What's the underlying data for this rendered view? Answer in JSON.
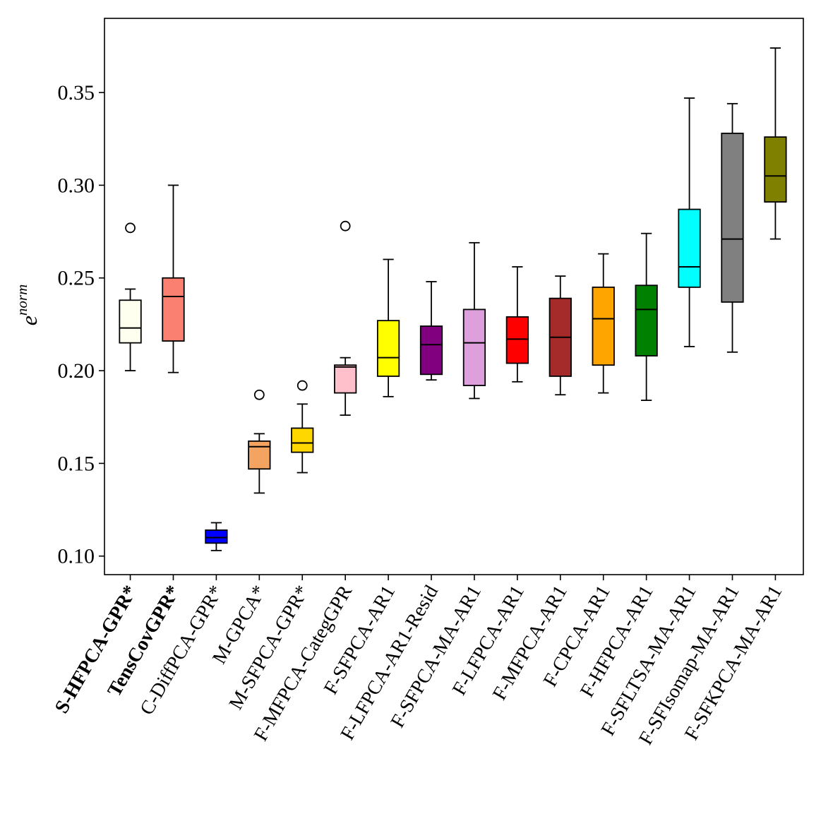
{
  "chart_data": {
    "type": "box",
    "title": "",
    "xlabel": "",
    "ylabel": "e",
    "ylabel_superscript": "norm",
    "ylim": [
      0.09,
      0.39
    ],
    "yticks": [
      0.1,
      0.15,
      0.2,
      0.25,
      0.3,
      0.35
    ],
    "ytick_labels": [
      "0.10",
      "0.15",
      "0.20",
      "0.25",
      "0.30",
      "0.35"
    ],
    "categories": [
      {
        "label": "S-HFPCA-GPR*",
        "bold": true,
        "color": "#fffff0",
        "whislo": 0.2,
        "q1": 0.215,
        "median": 0.223,
        "q3": 0.238,
        "whishi": 0.244,
        "fliers": [
          0.277
        ]
      },
      {
        "label": "TensCovGPR*",
        "bold": true,
        "color": "#fa8072",
        "whislo": 0.199,
        "q1": 0.216,
        "median": 0.24,
        "q3": 0.25,
        "whishi": 0.3,
        "fliers": []
      },
      {
        "label": "C-DiffPCA-GPR*",
        "bold": false,
        "color": "#0000ff",
        "whislo": 0.103,
        "q1": 0.107,
        "median": 0.11,
        "q3": 0.114,
        "whishi": 0.118,
        "fliers": []
      },
      {
        "label": "M-GPCA*",
        "bold": false,
        "color": "#f4a460",
        "whislo": 0.134,
        "q1": 0.147,
        "median": 0.159,
        "q3": 0.162,
        "whishi": 0.166,
        "fliers": [
          0.187
        ]
      },
      {
        "label": "M-SFPCA-GPR*",
        "bold": false,
        "color": "#ffd700",
        "whislo": 0.145,
        "q1": 0.156,
        "median": 0.161,
        "q3": 0.169,
        "whishi": 0.182,
        "fliers": [
          0.192
        ]
      },
      {
        "label": "F-MFPCA-CategGPR",
        "bold": false,
        "color": "#ffc0cb",
        "whislo": 0.176,
        "q1": 0.188,
        "median": 0.202,
        "q3": 0.203,
        "whishi": 0.207,
        "fliers": [
          0.278
        ]
      },
      {
        "label": "F-SFPCA-AR1",
        "bold": false,
        "color": "#ffff00",
        "whislo": 0.186,
        "q1": 0.197,
        "median": 0.207,
        "q3": 0.227,
        "whishi": 0.26,
        "fliers": []
      },
      {
        "label": "F-LFPCA-AR1-Resid",
        "bold": false,
        "color": "#800080",
        "whislo": 0.195,
        "q1": 0.198,
        "median": 0.214,
        "q3": 0.224,
        "whishi": 0.248,
        "fliers": []
      },
      {
        "label": "F-SFPCA-MA-AR1",
        "bold": false,
        "color": "#dda0dd",
        "whislo": 0.185,
        "q1": 0.192,
        "median": 0.215,
        "q3": 0.233,
        "whishi": 0.269,
        "fliers": []
      },
      {
        "label": "F-LFPCA-AR1",
        "bold": false,
        "color": "#ff0000",
        "whislo": 0.194,
        "q1": 0.204,
        "median": 0.217,
        "q3": 0.229,
        "whishi": 0.256,
        "fliers": []
      },
      {
        "label": "F-MFPCA-AR1",
        "bold": false,
        "color": "#a52a2a",
        "whislo": 0.187,
        "q1": 0.197,
        "median": 0.218,
        "q3": 0.239,
        "whishi": 0.251,
        "fliers": []
      },
      {
        "label": "F-CPCA-AR1",
        "bold": false,
        "color": "#ffa500",
        "whislo": 0.188,
        "q1": 0.203,
        "median": 0.228,
        "q3": 0.245,
        "whishi": 0.263,
        "fliers": []
      },
      {
        "label": "F-HFPCA-AR1",
        "bold": false,
        "color": "#008000",
        "whislo": 0.184,
        "q1": 0.208,
        "median": 0.233,
        "q3": 0.246,
        "whishi": 0.274,
        "fliers": []
      },
      {
        "label": "F-SFLTSA-MA-AR1",
        "bold": false,
        "color": "#00ffff",
        "whislo": 0.213,
        "q1": 0.245,
        "median": 0.256,
        "q3": 0.287,
        "whishi": 0.347,
        "fliers": []
      },
      {
        "label": "F-SFIsomap-MA-AR1",
        "bold": false,
        "color": "#808080",
        "whislo": 0.21,
        "q1": 0.237,
        "median": 0.271,
        "q3": 0.328,
        "whishi": 0.344,
        "fliers": []
      },
      {
        "label": "F-SFKPCA-MA-AR1",
        "bold": false,
        "color": "#808000",
        "whislo": 0.271,
        "q1": 0.291,
        "median": 0.305,
        "q3": 0.326,
        "whishi": 0.374,
        "fliers": []
      }
    ]
  }
}
